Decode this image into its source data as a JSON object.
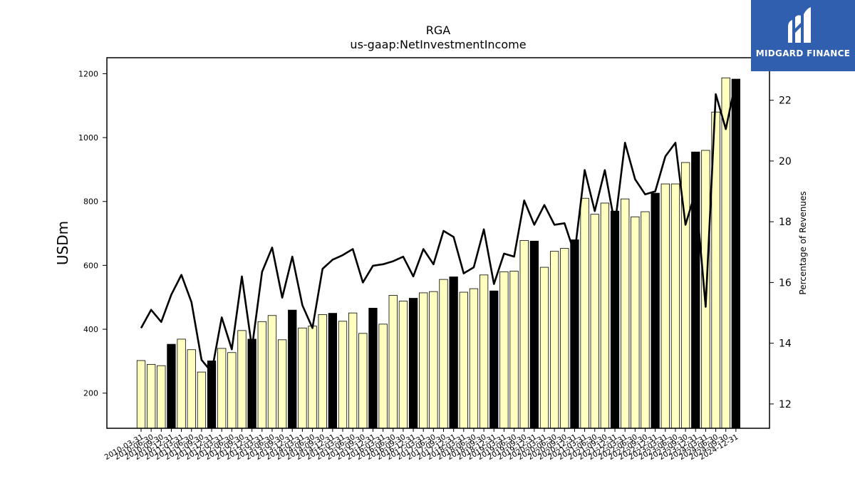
{
  "chart_data": {
    "type": "bar",
    "title": "RGA",
    "subtitle": "us-gaap:NetInvestmentIncome",
    "ylabel": "USDm",
    "y2label": "Percentage of Revenues",
    "ylim": [
      90,
      1250
    ],
    "y2lim": [
      11.2,
      23.4
    ],
    "yticks": [
      200,
      400,
      600,
      800,
      1000,
      1200
    ],
    "y2ticks": [
      12,
      14,
      16,
      18,
      20,
      22
    ],
    "colors": {
      "quarter_bar": "#ffffc0",
      "year_end_bar": "#000000",
      "line": "#000000",
      "bar_edge": "#000000"
    },
    "categories": [
      "2010-03-31",
      "2010-06-30",
      "2010-09-30",
      "2010-12-31",
      "2011-03-31",
      "2011-06-30",
      "2011-09-30",
      "2011-12-31",
      "2012-03-31",
      "2012-06-30",
      "2012-09-30",
      "2012-12-31",
      "2013-03-31",
      "2013-06-30",
      "2013-09-30",
      "2013-12-31",
      "2014-03-31",
      "2014-06-30",
      "2014-09-30",
      "2014-12-31",
      "2015-03-31",
      "2015-06-30",
      "2015-09-30",
      "2015-12-31",
      "2016-03-31",
      "2016-06-30",
      "2016-09-30",
      "2016-12-31",
      "2017-03-31",
      "2017-06-30",
      "2017-09-30",
      "2017-12-31",
      "2018-03-31",
      "2018-06-30",
      "2018-09-30",
      "2018-12-31",
      "2019-03-31",
      "2019-06-30",
      "2019-09-30",
      "2019-12-31",
      "2020-03-31",
      "2020-06-30",
      "2020-09-30",
      "2020-12-31",
      "2021-03-31",
      "2021-06-30",
      "2021-09-30",
      "2021-12-31",
      "2022-03-31",
      "2022-06-30",
      "2022-09-30",
      "2022-12-31",
      "2023-03-31",
      "2023-06-30",
      "2023-09-30",
      "2023-12-31",
      "2024-03-31",
      "2024-06-30",
      "2024-09-30",
      "2024-12-31"
    ],
    "series": [
      {
        "type": "bar",
        "values": [
          302,
          290,
          286,
          353,
          369,
          336,
          266,
          301,
          340,
          327,
          396,
          369,
          424,
          443,
          367,
          460,
          404,
          410,
          446,
          450,
          425,
          451,
          387,
          466,
          416,
          506,
          488,
          497,
          514,
          518,
          556,
          564,
          516,
          527,
          570,
          520,
          580,
          582,
          678,
          676,
          594,
          644,
          653,
          680,
          810,
          760,
          795,
          770,
          808,
          752,
          768,
          826,
          855,
          855,
          922,
          955,
          960,
          1080,
          1187,
          1183
        ]
      },
      {
        "type": "line",
        "axis": "right",
        "values": [
          14.5,
          15.1,
          14.7,
          15.6,
          16.25,
          15.35,
          13.45,
          13.05,
          14.85,
          13.8,
          16.2,
          13.85,
          16.35,
          17.15,
          15.5,
          16.85,
          15.25,
          14.5,
          16.45,
          16.75,
          16.9,
          17.1,
          16,
          16.55,
          16.6,
          16.7,
          16.85,
          16.2,
          17.1,
          16.6,
          17.7,
          17.5,
          16.3,
          16.5,
          17.75,
          15.95,
          16.95,
          16.85,
          18.7,
          17.9,
          18.55,
          17.9,
          17.95,
          16.95,
          19.7,
          18.35,
          19.7,
          17.9,
          20.6,
          19.4,
          18.9,
          19,
          20.15,
          20.6,
          17.9,
          19,
          15.2,
          22.2,
          21.05,
          22.65
        ]
      }
    ]
  },
  "logo": {
    "text": "MIDGARD FINANCE"
  }
}
